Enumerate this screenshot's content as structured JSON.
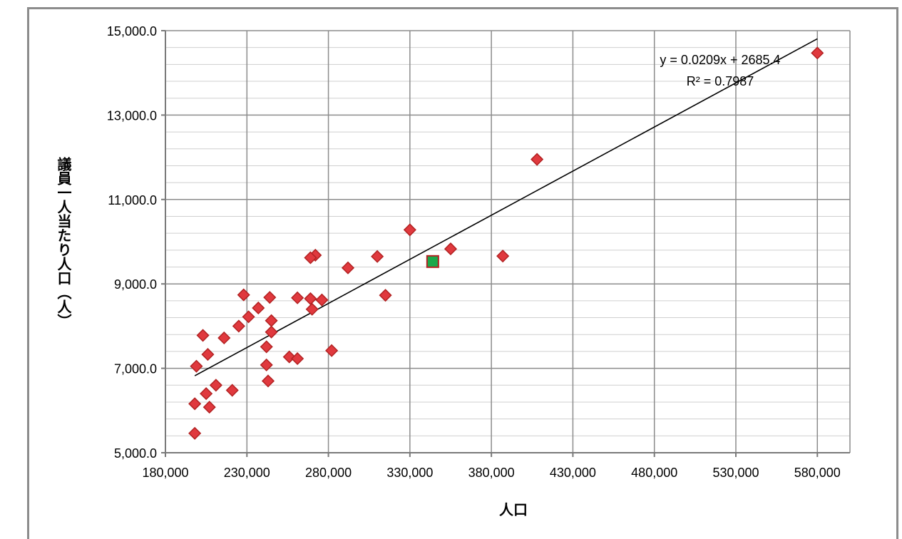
{
  "chart_data": {
    "type": "scatter",
    "xlabel": "人口",
    "ylabel": "議員一人当たり人口（人）",
    "xlim": [
      180000,
      600000
    ],
    "ylim": [
      5000,
      15000
    ],
    "x_ticks": [
      180000,
      230000,
      280000,
      330000,
      380000,
      430000,
      480000,
      530000,
      580000
    ],
    "x_tick_labels": [
      "180,000",
      "230,000",
      "280,000",
      "330,000",
      "380,000",
      "430,000",
      "480,000",
      "530,000",
      "580,000"
    ],
    "y_ticks": [
      5000,
      7000,
      9000,
      11000,
      13000,
      15000
    ],
    "y_tick_labels": [
      "5,000.0",
      "7,000.0",
      "9,000.0",
      "11,000.0",
      "13,000.0",
      "15,000.0"
    ],
    "y_minor_step": 400,
    "grid": true,
    "legend": "none",
    "series": [
      {
        "marker": "diamond",
        "color": "#e0393e",
        "edge_color": "#b22222",
        "points": [
          {
            "x": 580000,
            "y": 14470
          },
          {
            "x": 408000,
            "y": 11950
          },
          {
            "x": 330000,
            "y": 10280
          },
          {
            "x": 355000,
            "y": 9830
          },
          {
            "x": 387000,
            "y": 9660
          },
          {
            "x": 310000,
            "y": 9650
          },
          {
            "x": 272000,
            "y": 9680
          },
          {
            "x": 269000,
            "y": 9620
          },
          {
            "x": 292000,
            "y": 9380
          },
          {
            "x": 228000,
            "y": 8740
          },
          {
            "x": 244000,
            "y": 8680
          },
          {
            "x": 261000,
            "y": 8670
          },
          {
            "x": 269000,
            "y": 8650
          },
          {
            "x": 276000,
            "y": 8620
          },
          {
            "x": 315000,
            "y": 8730
          },
          {
            "x": 237000,
            "y": 8430
          },
          {
            "x": 270000,
            "y": 8400
          },
          {
            "x": 231000,
            "y": 8220
          },
          {
            "x": 245000,
            "y": 8130
          },
          {
            "x": 225000,
            "y": 8000
          },
          {
            "x": 245000,
            "y": 7860
          },
          {
            "x": 203000,
            "y": 7780
          },
          {
            "x": 216000,
            "y": 7720
          },
          {
            "x": 242000,
            "y": 7510
          },
          {
            "x": 282000,
            "y": 7420
          },
          {
            "x": 206000,
            "y": 7330
          },
          {
            "x": 256000,
            "y": 7270
          },
          {
            "x": 261000,
            "y": 7230
          },
          {
            "x": 242000,
            "y": 7080
          },
          {
            "x": 199000,
            "y": 7050
          },
          {
            "x": 243000,
            "y": 6700
          },
          {
            "x": 211000,
            "y": 6600
          },
          {
            "x": 221000,
            "y": 6480
          },
          {
            "x": 205000,
            "y": 6400
          },
          {
            "x": 198000,
            "y": 6160
          },
          {
            "x": 207000,
            "y": 6080
          },
          {
            "x": 198000,
            "y": 5460
          }
        ]
      },
      {
        "marker": "square",
        "color": "#1aa84a",
        "edge_color": "#b22222",
        "points": [
          {
            "x": 344000,
            "y": 9530
          }
        ]
      }
    ],
    "trendline": {
      "slope": 0.0209,
      "intercept": 2685.4,
      "x_range": [
        198000,
        580000
      ],
      "color": "#000000",
      "equation_label": "y = 0.0209x + 2685.4",
      "r2_label": "R² = 0.7987"
    }
  }
}
